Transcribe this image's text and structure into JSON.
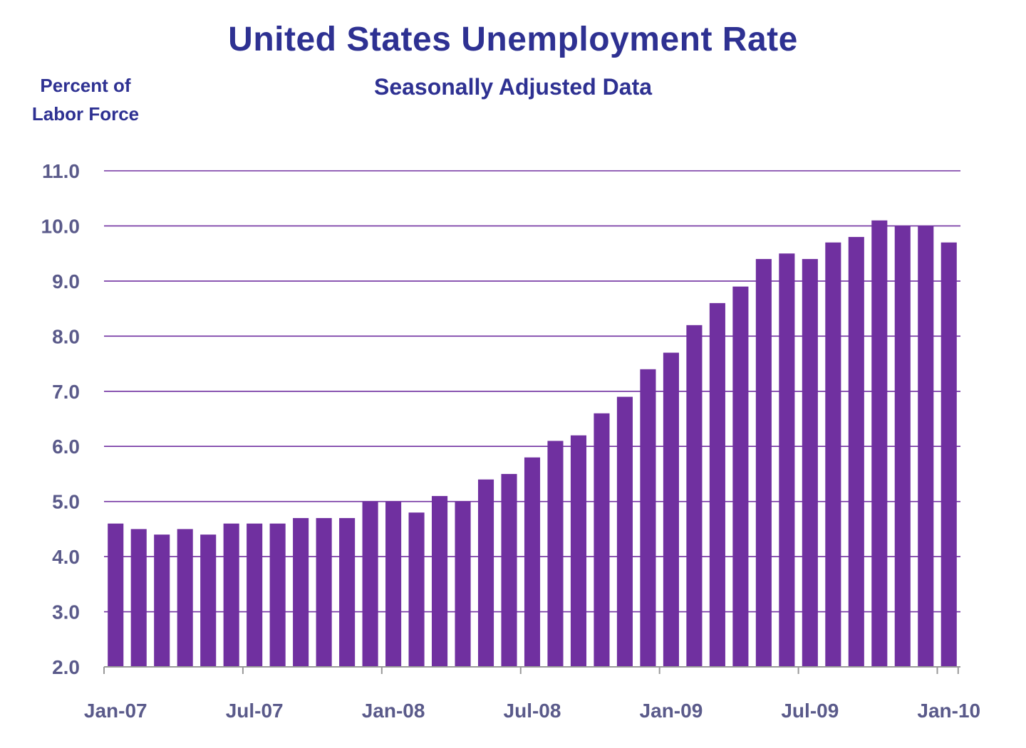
{
  "chart_data": {
    "type": "bar",
    "title": "United States Unemployment Rate",
    "subtitle": "Seasonally Adjusted Data",
    "ylabel_lines": [
      "Percent of",
      "Labor Force"
    ],
    "xlabel": "",
    "ylim": [
      2.0,
      11.0
    ],
    "yticks": [
      "2.0",
      "3.0",
      "4.0",
      "5.0",
      "6.0",
      "7.0",
      "8.0",
      "9.0",
      "10.0",
      "11.0"
    ],
    "grid": true,
    "categories": [
      "Jan-07",
      "Feb-07",
      "Mar-07",
      "Apr-07",
      "May-07",
      "Jun-07",
      "Jul-07",
      "Aug-07",
      "Sep-07",
      "Oct-07",
      "Nov-07",
      "Dec-07",
      "Jan-08",
      "Feb-08",
      "Mar-08",
      "Apr-08",
      "May-08",
      "Jun-08",
      "Jul-08",
      "Aug-08",
      "Sep-08",
      "Oct-08",
      "Nov-08",
      "Dec-08",
      "Jan-09",
      "Feb-09",
      "Mar-09",
      "Apr-09",
      "May-09",
      "Jun-09",
      "Jul-09",
      "Aug-09",
      "Sep-09",
      "Oct-09",
      "Nov-09",
      "Dec-09",
      "Jan-10"
    ],
    "values": [
      4.6,
      4.5,
      4.4,
      4.5,
      4.4,
      4.6,
      4.6,
      4.6,
      4.7,
      4.7,
      4.7,
      5.0,
      5.0,
      4.8,
      5.1,
      5.0,
      5.4,
      5.5,
      5.8,
      6.1,
      6.2,
      6.6,
      6.9,
      7.4,
      7.7,
      8.2,
      8.6,
      8.9,
      9.4,
      9.5,
      9.4,
      9.7,
      9.8,
      10.1,
      10.0,
      10.0,
      9.7
    ],
    "xtick_labels": [
      "Jan-07",
      "Jul-07",
      "Jan-08",
      "Jul-08",
      "Jan-09",
      "Jul-09",
      "Jan-10"
    ],
    "colors": {
      "bar": "#7030a0",
      "grid": "#7030a0",
      "title": "#2e3192",
      "tick_text": "#5a5a8a",
      "axis": "#999999"
    }
  }
}
